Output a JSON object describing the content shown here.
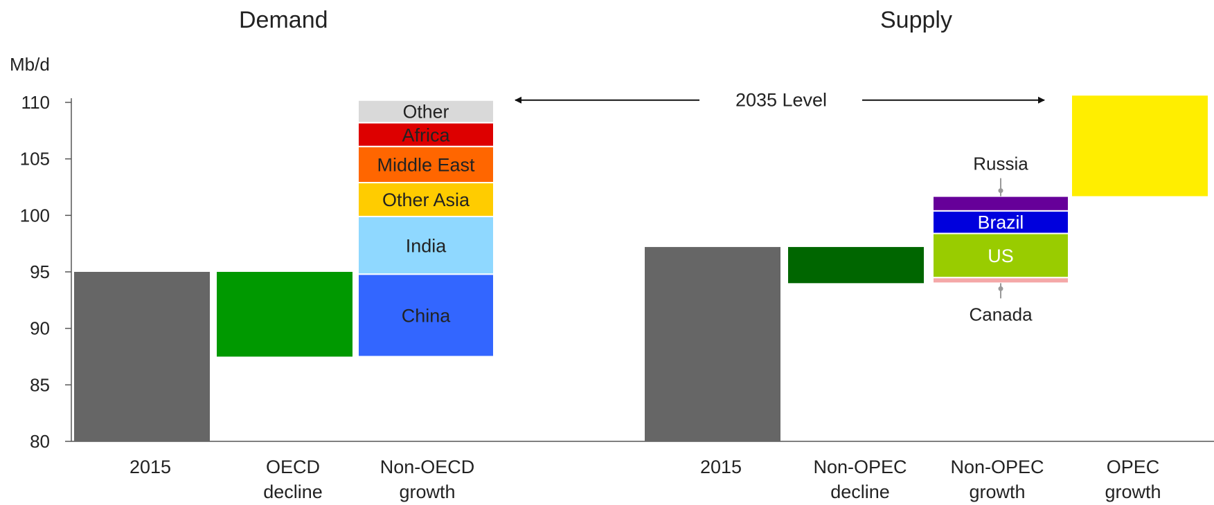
{
  "titles": {
    "demand": "Demand",
    "supply": "Supply"
  },
  "unit": "Mb/d",
  "annotation": "2035 Level",
  "categories": [
    {
      "id": "demand_2015",
      "line1": "2015",
      "line2": ""
    },
    {
      "id": "oecd_decline",
      "line1": "OECD",
      "line2": "decline"
    },
    {
      "id": "non_oecd_growth",
      "line1": "Non-OECD",
      "line2": "growth"
    },
    {
      "id": "supply_2015",
      "line1": "2015",
      "line2": ""
    },
    {
      "id": "non_opec_decline",
      "line1": "Non-OPEC",
      "line2": "decline"
    },
    {
      "id": "non_opec_growth",
      "line1": "Non-OPEC",
      "line2": "growth"
    },
    {
      "id": "opec_growth",
      "line1": "OPEC",
      "line2": "growth"
    }
  ],
  "chart_data": {
    "type": "bar",
    "subtype": "waterfall",
    "ylabel": "Mb/d",
    "ylim": [
      80,
      110
    ],
    "yticks": [
      80,
      85,
      90,
      95,
      100,
      105,
      110
    ],
    "grid": false,
    "panels": [
      "Demand",
      "Supply"
    ],
    "bars": [
      {
        "category": "2015",
        "panel": "Demand",
        "bottom": 80,
        "top": 95,
        "color": "#666666",
        "segments": []
      },
      {
        "category": "OECD decline",
        "panel": "Demand",
        "bottom": 87.5,
        "top": 95,
        "color": "#009900",
        "segments": []
      },
      {
        "category": "Non-OECD growth",
        "panel": "Demand",
        "bottom": 87.5,
        "top": 110.2,
        "segments": [
          {
            "name": "China",
            "bottom": 87.5,
            "top": 94.8,
            "color": "#3366FF",
            "text_color": "#222222"
          },
          {
            "name": "India",
            "bottom": 94.8,
            "top": 99.9,
            "color": "#8FD8FF",
            "text_color": "#222222"
          },
          {
            "name": "Other Asia",
            "bottom": 99.9,
            "top": 102.9,
            "color": "#FFCC00",
            "text_color": "#222222"
          },
          {
            "name": "Middle East",
            "bottom": 102.9,
            "top": 106.1,
            "color": "#FF6600",
            "text_color": "#222222"
          },
          {
            "name": "Africa",
            "bottom": 106.1,
            "top": 108.2,
            "color": "#DD0000",
            "text_color": "#222222"
          },
          {
            "name": "Other",
            "bottom": 108.2,
            "top": 110.2,
            "color": "#D9D9D9",
            "text_color": "#222222"
          }
        ]
      },
      {
        "category": "2015",
        "panel": "Supply",
        "bottom": 80,
        "top": 97.2,
        "color": "#666666",
        "segments": []
      },
      {
        "category": "Non-OPEC decline",
        "panel": "Supply",
        "bottom": 94.0,
        "top": 97.2,
        "color": "#006600",
        "segments": []
      },
      {
        "category": "Non-OPEC growth",
        "panel": "Supply",
        "bottom": 94.0,
        "top": 101.7,
        "segments": [
          {
            "name": "Canada",
            "bottom": 94.0,
            "top": 94.5,
            "color": "#F4A8A8",
            "label_position": "below"
          },
          {
            "name": "US",
            "bottom": 94.5,
            "top": 98.4,
            "color": "#99CC00",
            "text_color": "#ffffff"
          },
          {
            "name": "Brazil",
            "bottom": 98.4,
            "top": 100.4,
            "color": "#0000DD",
            "text_color": "#ffffff"
          },
          {
            "name": "Russia",
            "bottom": 100.4,
            "top": 101.7,
            "color": "#660099",
            "label_position": "above"
          }
        ]
      },
      {
        "category": "OPEC growth",
        "panel": "Supply",
        "bottom": 101.7,
        "top": 110.6,
        "color": "#FFEE00",
        "segments": []
      }
    ]
  }
}
